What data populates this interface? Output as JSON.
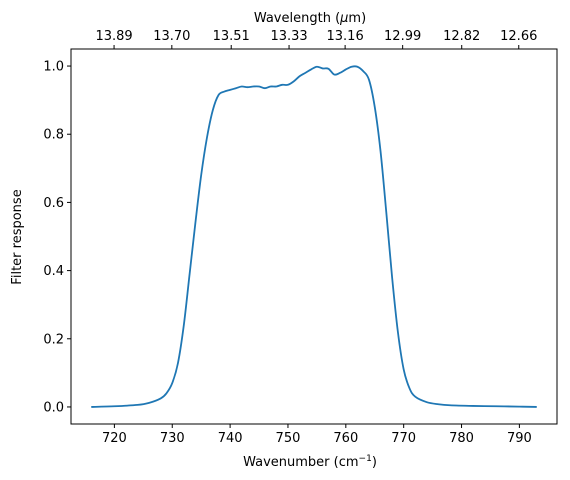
{
  "chart_data": {
    "type": "line",
    "title": "",
    "xlabel": "Wavenumber (cm",
    "xlabel_superscript": "−1",
    "xlabel_suffix": ")",
    "ylabel": "Filter response",
    "top_xlabel_prefix": "Wavelength (",
    "top_xlabel_mu": "μ",
    "top_xlabel_suffix": "m)",
    "xlim": [
      712.5,
      796.5
    ],
    "ylim": [
      -0.05,
      1.05
    ],
    "grid": false,
    "legend": "none",
    "line_color": "#1f77b4",
    "x_ticks": [
      720,
      730,
      740,
      750,
      760,
      770,
      780,
      790
    ],
    "x_tick_labels": [
      "720",
      "730",
      "740",
      "750",
      "760",
      "770",
      "780",
      "790"
    ],
    "y_ticks": [
      0.0,
      0.2,
      0.4,
      0.6,
      0.8,
      1.0
    ],
    "y_tick_labels": [
      "0.0",
      "0.2",
      "0.4",
      "0.6",
      "0.8",
      "1.0"
    ],
    "top_ticks": [
      13.89,
      13.7,
      13.51,
      13.33,
      13.16,
      12.99,
      12.82,
      12.66
    ],
    "top_tick_labels": [
      "13.89",
      "13.70",
      "13.51",
      "13.33",
      "13.16",
      "12.99",
      "12.82",
      "12.66"
    ],
    "series": [
      {
        "x": [
          716,
          720,
          724,
          726,
          728,
          729,
          730,
          731,
          732,
          733,
          734,
          735,
          736,
          737,
          738,
          739,
          740,
          741,
          742,
          743,
          744,
          745,
          746,
          747,
          748,
          749,
          750,
          751,
          752,
          753,
          754,
          755,
          756,
          757,
          758,
          759,
          760,
          761,
          762,
          763,
          764,
          765,
          766,
          767,
          768,
          769,
          770,
          771,
          772,
          774,
          776,
          778,
          782,
          786,
          790,
          793
        ],
        "y": [
          0.0,
          0.002,
          0.006,
          0.012,
          0.025,
          0.04,
          0.07,
          0.13,
          0.24,
          0.39,
          0.54,
          0.68,
          0.79,
          0.87,
          0.915,
          0.925,
          0.93,
          0.935,
          0.94,
          0.938,
          0.94,
          0.94,
          0.935,
          0.94,
          0.94,
          0.945,
          0.945,
          0.955,
          0.97,
          0.98,
          0.99,
          0.998,
          0.993,
          0.992,
          0.975,
          0.98,
          0.99,
          0.998,
          0.998,
          0.985,
          0.96,
          0.88,
          0.75,
          0.57,
          0.38,
          0.22,
          0.11,
          0.055,
          0.03,
          0.014,
          0.008,
          0.005,
          0.003,
          0.002,
          0.001,
          0.0
        ]
      }
    ]
  }
}
